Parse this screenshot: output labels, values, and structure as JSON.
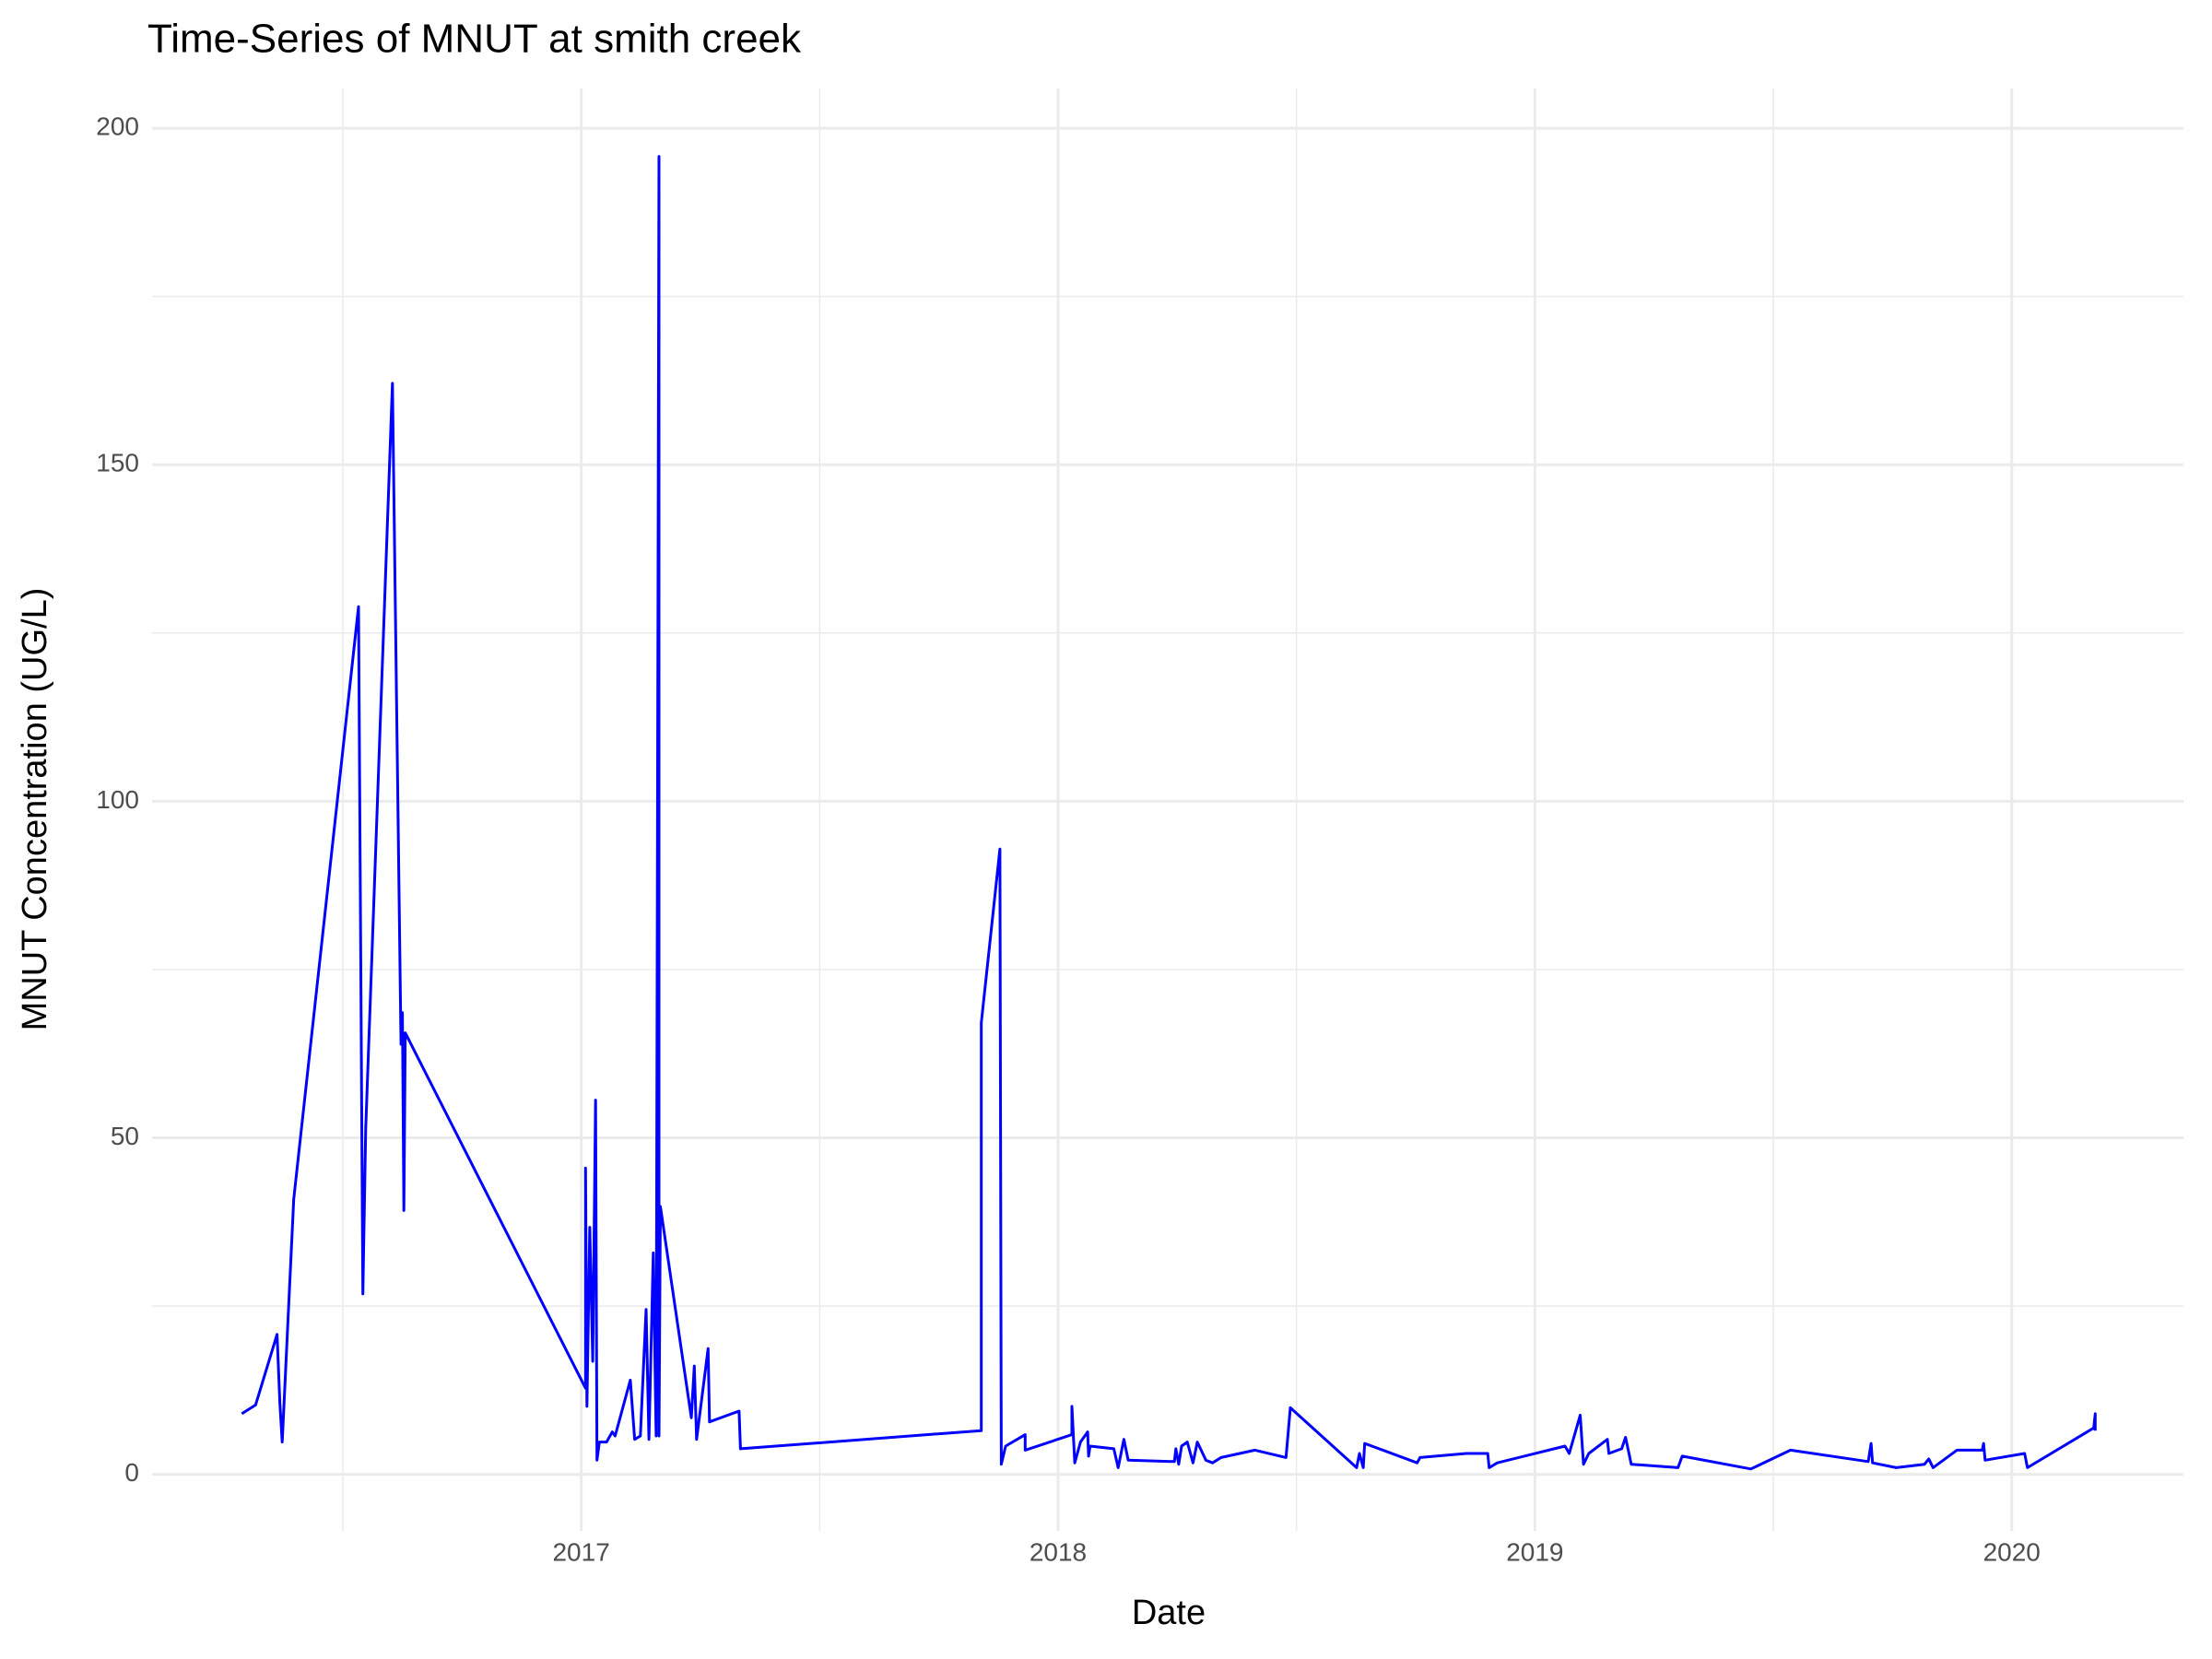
{
  "chart_data": {
    "type": "line",
    "title": "Time-Series of MNUT at smith creek",
    "x_label": "Date",
    "y_label": "MNUT Concentration (UG/L)",
    "x": [
      2016.288,
      2016.317,
      2016.362,
      2016.368,
      2016.373,
      2016.397,
      2016.533,
      2016.542,
      2016.548,
      2016.604,
      2016.622,
      2016.625,
      2016.628,
      2016.631,
      2017.009,
      2017.009,
      2017.012,
      2017.018,
      2017.024,
      2017.03,
      2017.033,
      2017.038,
      2017.053,
      2017.065,
      2017.071,
      2017.103,
      2017.112,
      2017.124,
      2017.136,
      2017.142,
      2017.151,
      2017.157,
      2017.163,
      2017.163,
      2017.166,
      2017.231,
      2017.237,
      2017.242,
      2017.266,
      2017.269,
      2017.331,
      2017.334,
      2017.839,
      2017.839,
      2017.878,
      2017.881,
      2017.89,
      2017.931,
      2017.931,
      2018.029,
      2018.029,
      2018.035,
      2018.047,
      2018.062,
      2018.064,
      2018.067,
      2018.117,
      2018.126,
      2018.138,
      2018.147,
      2018.244,
      2018.247,
      2018.253,
      2018.259,
      2018.271,
      2018.283,
      2018.292,
      2018.31,
      2018.324,
      2018.342,
      2018.413,
      2018.478,
      2018.487,
      2018.626,
      2018.632,
      2018.64,
      2018.643,
      2018.753,
      2018.759,
      2018.856,
      2018.901,
      2018.904,
      2018.921,
      2019.063,
      2019.072,
      2019.095,
      2019.102,
      2019.113,
      2019.152,
      2019.155,
      2019.182,
      2019.19,
      2019.202,
      2019.3,
      2019.309,
      2019.453,
      2019.536,
      2019.699,
      2019.705,
      2019.708,
      2019.758,
      2019.817,
      2019.826,
      2019.835,
      2019.885,
      2019.938,
      2019.941,
      2019.944,
      2020.027,
      2020.033,
      2020.172,
      2020.175,
      2020.175
    ],
    "series": [
      {
        "color": "#0000ff",
        "values": [
          9.0,
          10.3,
          20.8,
          10.5,
          4.8,
          40.9,
          128.9,
          26.8,
          51.4,
          162.1,
          63.9,
          68.6,
          39.2,
          65.6,
          12.8,
          45.5,
          10.1,
          36.7,
          16.8,
          55.6,
          2.1,
          4.8,
          4.8,
          6.3,
          5.7,
          14.0,
          5.2,
          5.7,
          24.5,
          5.2,
          32.9,
          5.7,
          195.8,
          5.7,
          39.8,
          8.4,
          16.1,
          5.2,
          18.7,
          7.8,
          9.4,
          3.8,
          6.5,
          67.1,
          92.9,
          1.5,
          4.2,
          5.9,
          3.6,
          5.9,
          10.1,
          1.7,
          4.8,
          6.3,
          2.7,
          4.2,
          3.8,
          1.0,
          5.2,
          2.1,
          1.9,
          3.8,
          1.5,
          4.2,
          4.8,
          1.7,
          4.8,
          2.1,
          1.7,
          2.5,
          3.6,
          2.5,
          9.9,
          1.0,
          3.1,
          1.0,
          4.6,
          1.7,
          2.5,
          3.1,
          3.1,
          1.0,
          1.7,
          4.2,
          3.1,
          8.8,
          1.5,
          3.1,
          5.2,
          3.1,
          3.8,
          5.5,
          1.5,
          1.0,
          2.7,
          0.8,
          3.6,
          1.9,
          4.6,
          1.7,
          1.0,
          1.5,
          2.3,
          1.0,
          3.6,
          3.6,
          4.6,
          2.1,
          3.1,
          1.0,
          6.9,
          9.0,
          6.5
        ]
      }
    ],
    "xlim": [
      2016.1,
      2020.36
    ],
    "xticks": [
      2017,
      2018,
      2019,
      2020
    ],
    "ylim": [
      -8.4,
      205.9
    ],
    "yticks": [
      0,
      50,
      100,
      150,
      200
    ],
    "grid": true,
    "minor_grid": true
  }
}
